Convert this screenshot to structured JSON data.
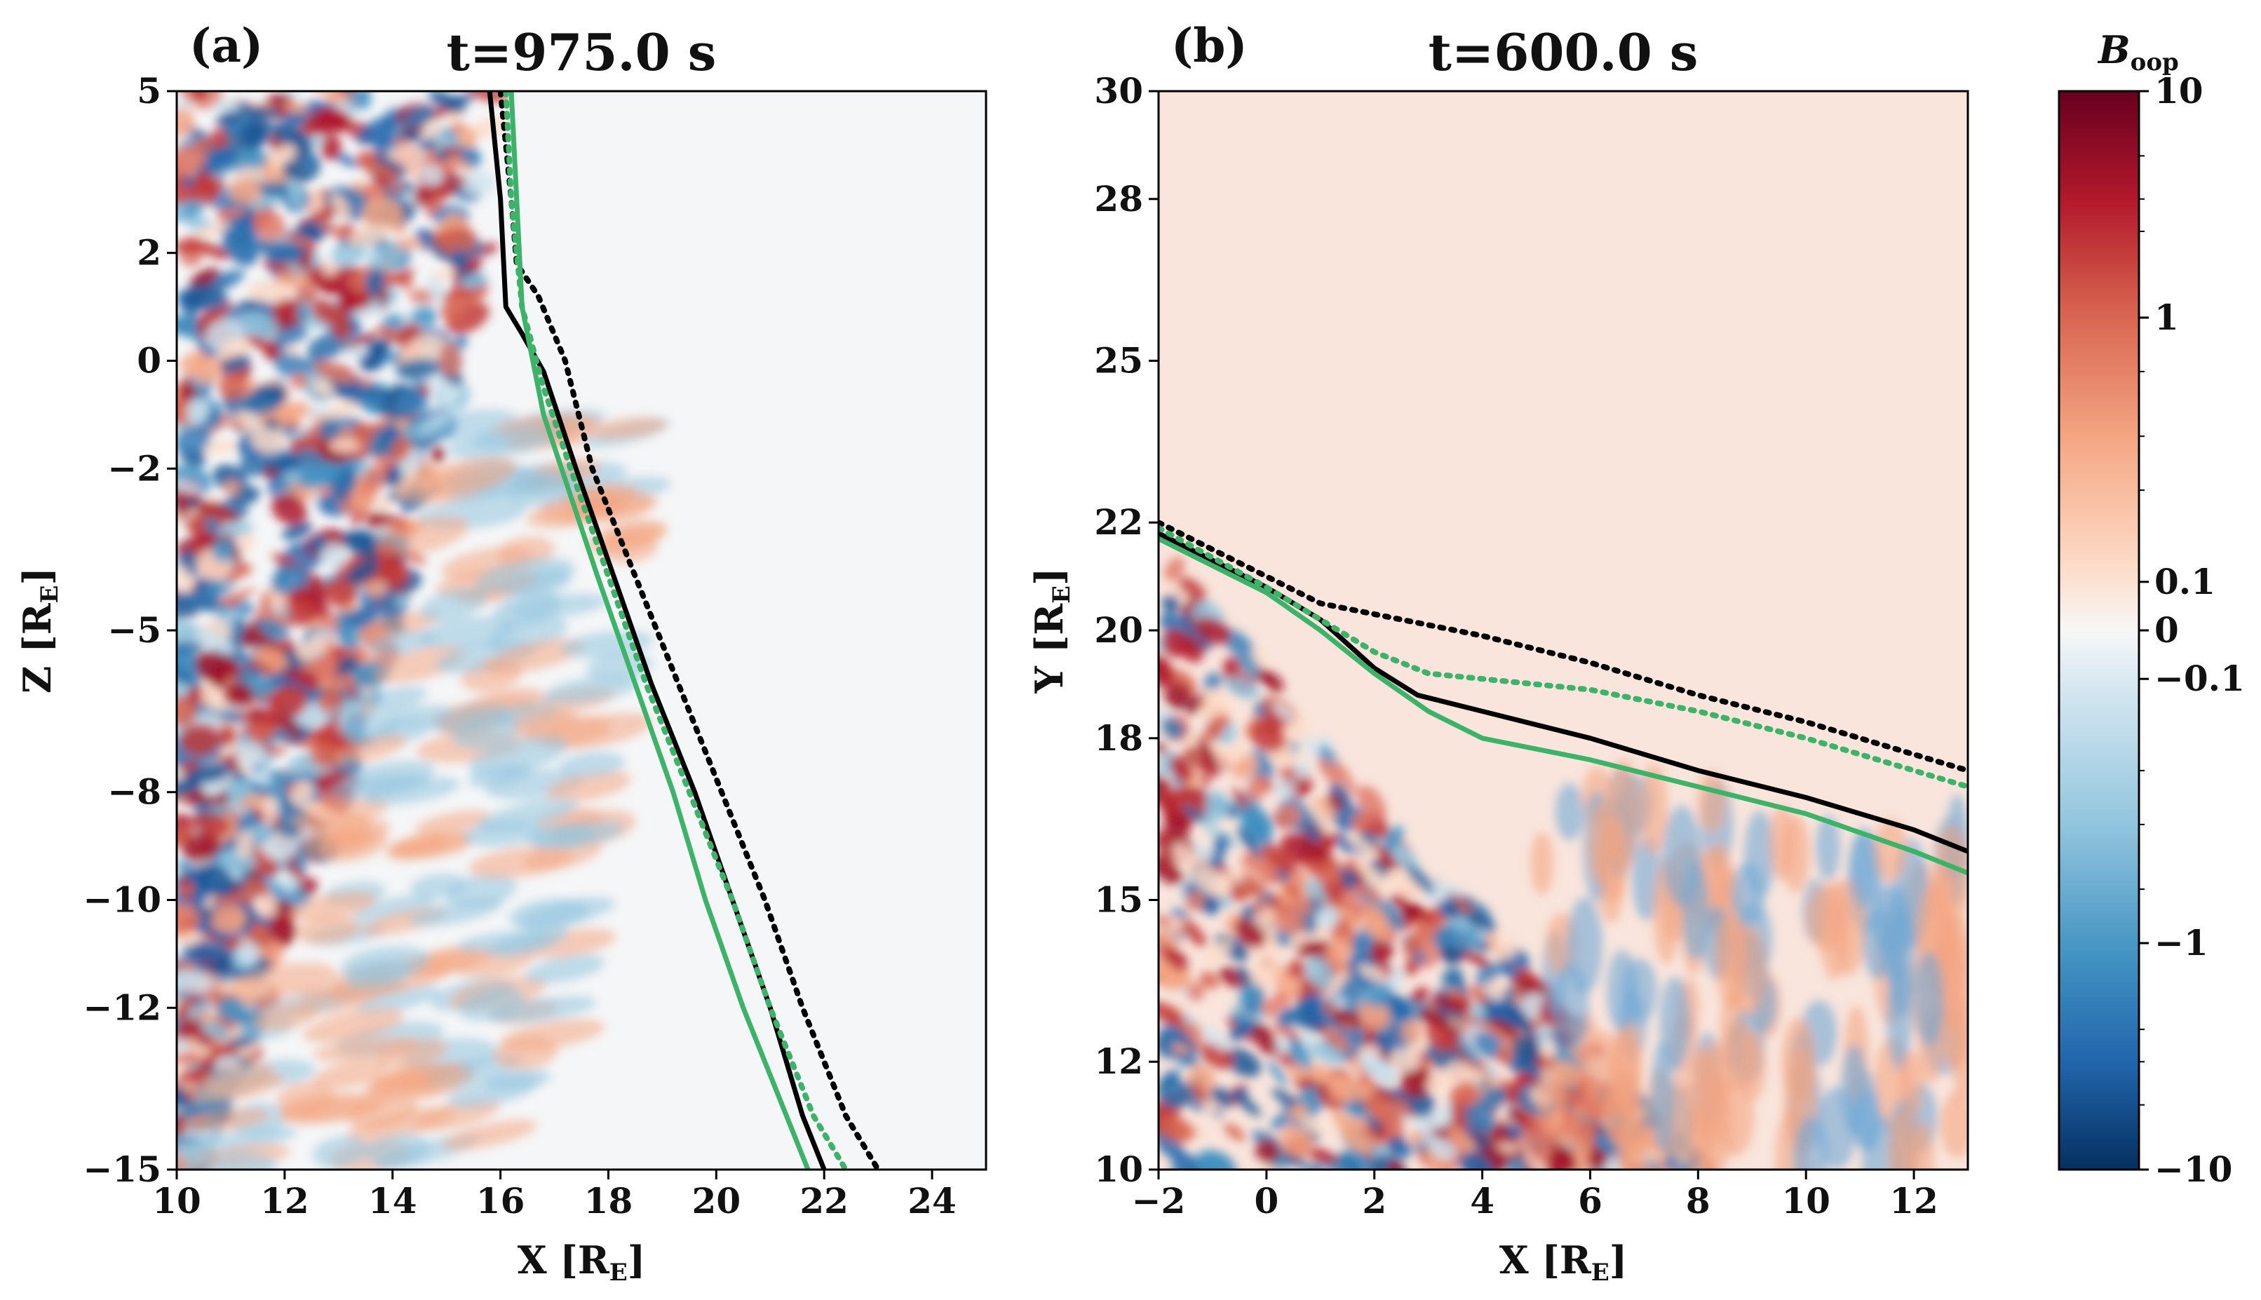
{
  "chart_data": [
    {
      "type": "heatmap",
      "panel_label": "(a)",
      "title": "t=975.0 s",
      "xlabel": "X [R",
      "xlabel_sub": "E",
      "ylabel": "Z [R",
      "ylabel_sub": "E",
      "xlim": [
        10,
        25
      ],
      "ylim": [
        -15,
        5
      ],
      "xticks": [
        10,
        12,
        14,
        16,
        18,
        20,
        22,
        24
      ],
      "yticks": [
        5,
        2,
        0,
        -2,
        -5,
        -8,
        -10,
        -12,
        -15
      ],
      "ytick_labels": [
        "5",
        "2",
        "0",
        "−2",
        "−5",
        "−8",
        "−10",
        "−12",
        "−15"
      ],
      "lines": [
        {
          "style": "solid",
          "color": "#000000",
          "points": [
            [
              15.8,
              5
            ],
            [
              16.0,
              3
            ],
            [
              16.1,
              1
            ],
            [
              16.4,
              0.5
            ],
            [
              16.8,
              -0.2
            ],
            [
              17.4,
              -2
            ],
            [
              18.1,
              -4
            ],
            [
              18.8,
              -6
            ],
            [
              19.6,
              -8
            ],
            [
              20.3,
              -10
            ],
            [
              21.0,
              -12
            ],
            [
              21.6,
              -14
            ],
            [
              22.0,
              -15
            ]
          ]
        },
        {
          "style": "dotted",
          "color": "#000000",
          "points": [
            [
              16.0,
              5
            ],
            [
              16.2,
              3
            ],
            [
              16.3,
              1.8
            ],
            [
              16.7,
              1.2
            ],
            [
              17.2,
              0
            ],
            [
              17.7,
              -2
            ],
            [
              18.5,
              -4
            ],
            [
              19.3,
              -6
            ],
            [
              20.1,
              -8
            ],
            [
              20.9,
              -10
            ],
            [
              21.6,
              -12
            ],
            [
              22.4,
              -14
            ],
            [
              23.0,
              -15
            ]
          ]
        },
        {
          "style": "solid",
          "color": "#3db36a",
          "points": [
            [
              16.2,
              5
            ],
            [
              16.3,
              3
            ],
            [
              16.4,
              1
            ],
            [
              16.8,
              -1
            ],
            [
              17.3,
              -2.5
            ],
            [
              17.8,
              -4
            ],
            [
              18.5,
              -6
            ],
            [
              19.2,
              -8
            ],
            [
              19.8,
              -10
            ],
            [
              20.5,
              -12
            ],
            [
              21.1,
              -13.5
            ],
            [
              21.7,
              -15
            ]
          ]
        },
        {
          "style": "dotted",
          "color": "#3db36a",
          "points": [
            [
              16.1,
              5
            ],
            [
              16.2,
              3
            ],
            [
              16.4,
              1
            ],
            [
              16.8,
              -0.5
            ],
            [
              17.3,
              -2
            ],
            [
              18.0,
              -4
            ],
            [
              18.7,
              -6
            ],
            [
              19.5,
              -8
            ],
            [
              20.3,
              -10
            ],
            [
              21.0,
              -12
            ],
            [
              21.8,
              -14
            ],
            [
              22.4,
              -15
            ]
          ]
        }
      ]
    },
    {
      "type": "heatmap",
      "panel_label": "(b)",
      "title": "t=600.0 s",
      "xlabel": "X [R",
      "xlabel_sub": "E",
      "ylabel": "Y [R",
      "ylabel_sub": "E",
      "xlim": [
        -2,
        13
      ],
      "ylim": [
        10,
        30
      ],
      "xticks": [
        -2,
        0,
        2,
        4,
        6,
        8,
        10,
        12
      ],
      "xtick_labels": [
        "−2",
        "0",
        "2",
        "4",
        "6",
        "8",
        "10",
        "12"
      ],
      "yticks": [
        30,
        28,
        25,
        22,
        20,
        18,
        15,
        12,
        10
      ],
      "lines": [
        {
          "style": "solid",
          "color": "#000000",
          "points": [
            [
              -2,
              21.8
            ],
            [
              0,
              20.8
            ],
            [
              1,
              20.2
            ],
            [
              2,
              19.3
            ],
            [
              2.8,
              18.8
            ],
            [
              4,
              18.5
            ],
            [
              6,
              18.0
            ],
            [
              8,
              17.4
            ],
            [
              10,
              16.9
            ],
            [
              12,
              16.3
            ],
            [
              13,
              15.9
            ]
          ]
        },
        {
          "style": "dotted",
          "color": "#000000",
          "points": [
            [
              -2,
              22.0
            ],
            [
              0,
              21.0
            ],
            [
              1,
              20.5
            ],
            [
              2,
              20.3
            ],
            [
              4,
              19.9
            ],
            [
              6,
              19.4
            ],
            [
              8,
              18.8
            ],
            [
              10,
              18.3
            ],
            [
              12,
              17.7
            ],
            [
              13,
              17.4
            ]
          ]
        },
        {
          "style": "solid",
          "color": "#3db36a",
          "points": [
            [
              -2,
              21.7
            ],
            [
              0,
              20.7
            ],
            [
              1,
              20.0
            ],
            [
              2,
              19.2
            ],
            [
              3,
              18.5
            ],
            [
              4,
              18.0
            ],
            [
              6,
              17.6
            ],
            [
              8,
              17.1
            ],
            [
              10,
              16.6
            ],
            [
              12,
              15.9
            ],
            [
              13,
              15.5
            ]
          ]
        },
        {
          "style": "dotted",
          "color": "#3db36a",
          "points": [
            [
              -2,
              21.9
            ],
            [
              0,
              20.8
            ],
            [
              1,
              20.2
            ],
            [
              2,
              19.6
            ],
            [
              3,
              19.2
            ],
            [
              4,
              19.1
            ],
            [
              6,
              18.9
            ],
            [
              8,
              18.5
            ],
            [
              10,
              18.0
            ],
            [
              12,
              17.4
            ],
            [
              13,
              17.1
            ]
          ]
        }
      ]
    }
  ],
  "colorbar": {
    "label": "B",
    "label_sub": "oop",
    "ticks": [
      "10",
      "1",
      "0.1",
      "0",
      "−0.1",
      "−1",
      "−10"
    ],
    "tick_fractions": [
      1.0,
      0.79,
      0.545,
      0.5,
      0.455,
      0.21,
      0.0
    ],
    "colormap": [
      "#053061",
      "#2166ac",
      "#4393c3",
      "#92c5de",
      "#d1e5f0",
      "#f7f7f7",
      "#fddbc7",
      "#f4a582",
      "#d6604d",
      "#b2182b",
      "#67001f"
    ]
  }
}
